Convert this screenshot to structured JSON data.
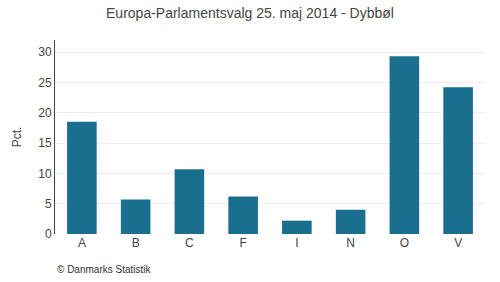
{
  "chart_data": {
    "type": "bar",
    "title": "Europa-Parlamentsvalg 25. maj 2014 - Dybbøl",
    "categories": [
      "A",
      "B",
      "C",
      "F",
      "I",
      "N",
      "O",
      "V"
    ],
    "values": [
      18.5,
      5.7,
      10.7,
      6.2,
      2.2,
      4.0,
      29.3,
      24.2
    ],
    "color": "#1a6e8e",
    "ylabel": "Pct.",
    "annotations": [
      "© Danmarks Statistik"
    ],
    "ylim": [
      0,
      32
    ],
    "yticks": [
      0,
      5,
      10,
      15,
      20,
      25,
      30
    ],
    "grid": true
  }
}
